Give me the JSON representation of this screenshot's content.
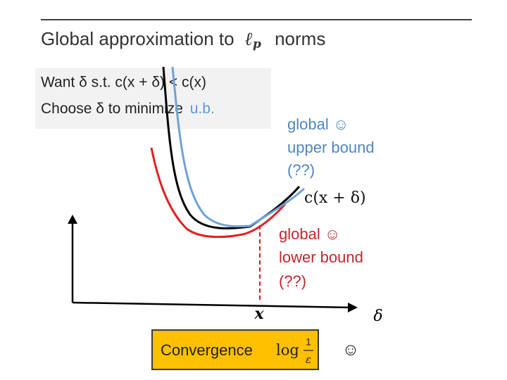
{
  "title": {
    "prefix": "Global approximation to",
    "symbol": "ℓ",
    "subscript": "p",
    "suffix": "norms"
  },
  "bullets": [
    {
      "text": "Want δ s.t. c(x + δ) < c(x)"
    },
    {
      "text": "Choose δ to minimize",
      "highlight": "u.b."
    }
  ],
  "upper_label": {
    "line1": "global ☺",
    "line2": "upper bound",
    "line3": "(??)"
  },
  "curve_label": "c(x + δ)",
  "lower_label": {
    "line1": "global ☺",
    "line2": "lower bound",
    "line3": "(??)"
  },
  "axis_labels": {
    "x_point": "x",
    "delta": "δ"
  },
  "convergence": {
    "label": "Convergence",
    "log": "log",
    "numerator": "1",
    "denominator": "ε",
    "smiley": "☺"
  }
}
